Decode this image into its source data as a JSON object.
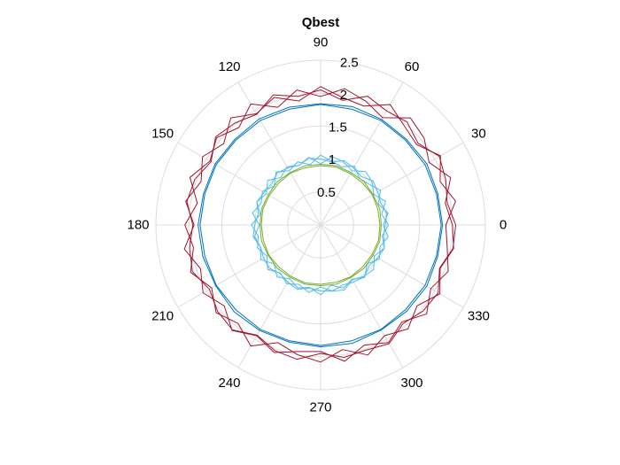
{
  "chart_data": {
    "type": "polar-line",
    "title": "Qbest",
    "rlim": [
      0,
      2.5
    ],
    "r_ticks": [
      0.5,
      1,
      1.5,
      2,
      2.5
    ],
    "r_tick_labels": [
      "0.5",
      "1",
      "1.5",
      "2",
      "2.5"
    ],
    "theta_ticks_deg": [
      0,
      30,
      60,
      90,
      120,
      150,
      180,
      210,
      240,
      270,
      300,
      330
    ],
    "theta_tick_labels": [
      "0",
      "30",
      "60",
      "90",
      "120",
      "150",
      "180",
      "210",
      "240",
      "270",
      "300",
      "330"
    ],
    "theta_unit": "degrees",
    "grid": true,
    "grid_color": "#dcdcdc",
    "series": [
      {
        "color": "#a2142f",
        "theta_deg": [
          0,
          10,
          20,
          30,
          40,
          50,
          60,
          70,
          80,
          90,
          100,
          110,
          120,
          130,
          140,
          150,
          160,
          170,
          180,
          190,
          200,
          210,
          220,
          230,
          240,
          250,
          260,
          270,
          280,
          290,
          300,
          310,
          320,
          330,
          340,
          350,
          360
        ],
        "r": [
          2.0,
          1.92,
          2.1,
          1.9,
          2.05,
          2.12,
          1.88,
          2.0,
          2.1,
          1.95,
          2.08,
          1.9,
          2.12,
          1.93,
          2.06,
          1.94,
          2.11,
          1.9,
          2.06,
          1.96,
          2.1,
          1.91,
          2.07,
          1.95,
          2.12,
          1.9,
          2.0,
          2.08,
          1.92,
          2.1,
          1.94,
          2.06,
          1.91,
          2.09,
          1.93,
          2.05,
          2.0
        ]
      },
      {
        "color": "#a2142f",
        "theta_deg": [
          0,
          10,
          20,
          30,
          40,
          50,
          60,
          70,
          80,
          90,
          100,
          110,
          120,
          130,
          140,
          150,
          160,
          170,
          180,
          190,
          200,
          210,
          220,
          230,
          240,
          250,
          260,
          270,
          280,
          290,
          300,
          310,
          320,
          330,
          340,
          350,
          360
        ],
        "r": [
          1.9,
          2.08,
          1.93,
          2.1,
          1.9,
          1.97,
          2.11,
          1.92,
          1.96,
          2.1,
          1.91,
          2.06,
          1.95,
          2.12,
          1.92,
          2.07,
          1.93,
          2.08,
          1.92,
          2.1,
          1.94,
          2.06,
          1.91,
          2.09,
          1.94,
          2.06,
          1.95,
          1.92,
          2.1,
          1.94,
          2.06,
          1.92,
          2.1,
          1.93,
          2.06,
          1.95,
          1.9
        ]
      },
      {
        "color": "#a2142f",
        "theta_deg": [
          0,
          10,
          20,
          30,
          40,
          50,
          60,
          70,
          80,
          90,
          100,
          110,
          120,
          130,
          140,
          150,
          160,
          170,
          180,
          190,
          200,
          210,
          220,
          230,
          240,
          250,
          260,
          270,
          280,
          290,
          300,
          310,
          320,
          330,
          340,
          350,
          360
        ],
        "r": [
          2.05,
          1.95,
          2.02,
          2.08,
          1.93,
          2.04,
          2.0,
          2.08,
          1.92,
          2.05,
          1.98,
          2.1,
          1.94,
          2.02,
          2.08,
          1.92,
          2.03,
          2.06,
          1.94,
          2.02,
          2.07,
          1.95,
          2.04,
          2.08,
          1.93,
          2.03,
          2.07,
          1.95,
          2.04,
          2.02,
          2.08,
          1.95,
          2.03,
          2.06,
          1.92,
          2.04,
          2.05
        ]
      },
      {
        "color": "#0072bd",
        "theta_deg": [
          0,
          15,
          30,
          45,
          60,
          75,
          90,
          105,
          120,
          135,
          150,
          165,
          180,
          195,
          210,
          225,
          240,
          255,
          270,
          285,
          300,
          315,
          330,
          345,
          360
        ],
        "r": [
          1.83,
          1.82,
          1.83,
          1.82,
          1.83,
          1.82,
          1.83,
          1.82,
          1.83,
          1.82,
          1.83,
          1.82,
          1.83,
          1.82,
          1.83,
          1.82,
          1.83,
          1.82,
          1.83,
          1.82,
          1.83,
          1.82,
          1.83,
          1.82,
          1.83
        ]
      },
      {
        "color": "#0072bd",
        "theta_deg": [
          0,
          15,
          30,
          45,
          60,
          75,
          90,
          105,
          120,
          135,
          150,
          165,
          180,
          195,
          210,
          225,
          240,
          255,
          270,
          285,
          300,
          315,
          330,
          345,
          360
        ],
        "r": [
          1.85,
          1.84,
          1.86,
          1.84,
          1.85,
          1.86,
          1.84,
          1.85,
          1.86,
          1.84,
          1.85,
          1.84,
          1.86,
          1.85,
          1.84,
          1.86,
          1.85,
          1.84,
          1.85,
          1.86,
          1.84,
          1.85,
          1.86,
          1.84,
          1.85
        ]
      },
      {
        "color": "#4dbeee",
        "theta_deg": [
          0,
          10,
          20,
          30,
          40,
          50,
          60,
          70,
          80,
          90,
          100,
          110,
          120,
          130,
          140,
          150,
          160,
          170,
          180,
          190,
          200,
          210,
          220,
          230,
          240,
          250,
          260,
          270,
          280,
          290,
          300,
          310,
          320,
          330,
          340,
          350,
          360
        ],
        "r": [
          0.95,
          1.04,
          0.93,
          1.05,
          0.96,
          0.92,
          1.03,
          0.94,
          0.98,
          1.06,
          0.93,
          1.02,
          0.95,
          1.05,
          0.92,
          1.02,
          0.96,
          1.05,
          0.93,
          1.02,
          0.97,
          1.05,
          0.92,
          1.03,
          0.94,
          1.02,
          0.96,
          1.06,
          0.93,
          1.02,
          0.95,
          1.04,
          0.92,
          1.03,
          0.96,
          1.04,
          0.95
        ]
      },
      {
        "color": "#4dbeee",
        "theta_deg": [
          0,
          10,
          20,
          30,
          40,
          50,
          60,
          70,
          80,
          90,
          100,
          110,
          120,
          130,
          140,
          150,
          160,
          170,
          180,
          190,
          200,
          210,
          220,
          230,
          240,
          250,
          260,
          270,
          280,
          290,
          300,
          310,
          320,
          330,
          340,
          350,
          360
        ],
        "r": [
          1.03,
          0.94,
          1.05,
          0.93,
          1.02,
          1.06,
          0.95,
          1.02,
          1.05,
          0.93,
          1.04,
          0.96,
          1.02,
          0.94,
          1.05,
          0.95,
          1.03,
          0.93,
          1.05,
          0.96,
          1.02,
          0.94,
          1.05,
          0.95,
          1.03,
          0.96,
          1.04,
          0.94,
          1.02,
          1.05,
          0.96,
          1.02,
          1.05,
          0.94,
          1.03,
          0.95,
          1.03
        ]
      },
      {
        "color": "#4dbeee",
        "theta_deg": [
          0,
          10,
          20,
          30,
          40,
          50,
          60,
          70,
          80,
          90,
          100,
          110,
          120,
          130,
          140,
          150,
          160,
          170,
          180,
          190,
          200,
          210,
          220,
          230,
          240,
          250,
          260,
          270,
          280,
          290,
          300,
          310,
          320,
          330,
          340,
          350,
          360
        ],
        "r": [
          0.98,
          1.02,
          0.97,
          1.0,
          1.04,
          0.96,
          1.0,
          1.04,
          0.97,
          1.0,
          1.03,
          0.96,
          1.0,
          1.03,
          0.97,
          0.99,
          1.03,
          0.96,
          1.0,
          1.04,
          0.97,
          1.0,
          1.02,
          0.96,
          1.0,
          1.04,
          0.97,
          1.0,
          1.02,
          0.97,
          1.0,
          1.03,
          0.96,
          1.0,
          1.03,
          0.97,
          0.98
        ]
      },
      {
        "color": "#77ac30",
        "theta_deg": [
          0,
          15,
          30,
          45,
          60,
          75,
          90,
          105,
          120,
          135,
          150,
          165,
          180,
          195,
          210,
          225,
          240,
          255,
          270,
          285,
          300,
          315,
          330,
          345,
          360
        ],
        "r": [
          0.9,
          0.9,
          0.91,
          0.9,
          0.9,
          0.91,
          0.9,
          0.9,
          0.91,
          0.9,
          0.9,
          0.91,
          0.9,
          0.9,
          0.91,
          0.9,
          0.9,
          0.91,
          0.9,
          0.9,
          0.91,
          0.9,
          0.9,
          0.91,
          0.9
        ]
      },
      {
        "color": "#77ac30",
        "theta_deg": [
          0,
          15,
          30,
          45,
          60,
          75,
          90,
          105,
          120,
          135,
          150,
          165,
          180,
          195,
          210,
          225,
          240,
          255,
          270,
          285,
          300,
          315,
          330,
          345,
          360
        ],
        "r": [
          0.92,
          0.93,
          0.92,
          0.93,
          0.92,
          0.93,
          0.92,
          0.93,
          0.92,
          0.93,
          0.92,
          0.93,
          0.92,
          0.93,
          0.92,
          0.93,
          0.92,
          0.93,
          0.92,
          0.93,
          0.92,
          0.93,
          0.92,
          0.93,
          0.92
        ]
      }
    ]
  }
}
